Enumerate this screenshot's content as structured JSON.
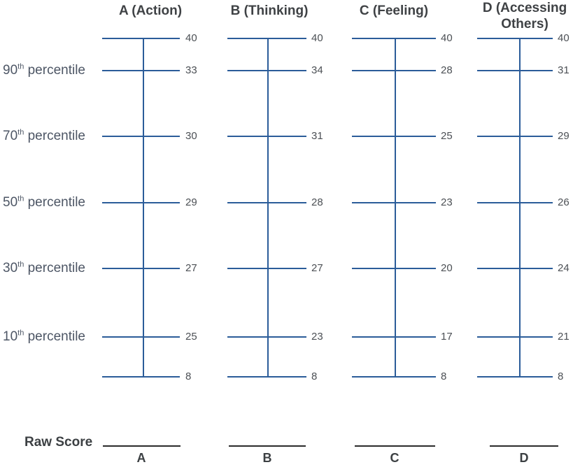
{
  "colors": {
    "scale_line_blue": "#2b5c99",
    "header_text": "#3f4245",
    "percentile_label_text": "#4d5665",
    "tick_number_text": "#4c5055",
    "raw_score_line": "#2b2b2b",
    "background": "#ffffff"
  },
  "percentile_rows": [
    {
      "num": "90",
      "sup": "th",
      "word": "percentile"
    },
    {
      "num": "70",
      "sup": "th",
      "word": "percentile"
    },
    {
      "num": "50",
      "sup": "th",
      "word": "percentile"
    },
    {
      "num": "30",
      "sup": "th",
      "word": "percentile"
    },
    {
      "num": "10",
      "sup": "th",
      "word": "percentile"
    }
  ],
  "columns": [
    {
      "id": "A",
      "header": "A (Action)",
      "values": [
        "40",
        "33",
        "30",
        "29",
        "27",
        "25",
        "8"
      ]
    },
    {
      "id": "B",
      "header": "B (Thinking)",
      "values": [
        "40",
        "34",
        "31",
        "28",
        "27",
        "23",
        "8"
      ]
    },
    {
      "id": "C",
      "header": "C (Feeling)",
      "values": [
        "40",
        "28",
        "25",
        "23",
        "20",
        "17",
        "8"
      ]
    },
    {
      "id": "D",
      "header": "D (Accessing Others)",
      "values": [
        "40",
        "31",
        "29",
        "26",
        "24",
        "21",
        "8"
      ]
    }
  ],
  "raw_score": {
    "label": "Raw Score",
    "blanks": [
      "A",
      "B",
      "C",
      "D"
    ]
  },
  "chart_data": {
    "type": "table",
    "title": "Percentile profile scales for scores A–D",
    "categories": [
      "90th percentile",
      "70th percentile",
      "50th percentile",
      "30th percentile",
      "10th percentile"
    ],
    "scale_max": 40,
    "scale_min": 8,
    "series": [
      {
        "name": "A (Action)",
        "values": [
          33,
          30,
          29,
          27,
          25
        ]
      },
      {
        "name": "B (Thinking)",
        "values": [
          34,
          31,
          28,
          27,
          23
        ]
      },
      {
        "name": "C (Feeling)",
        "values": [
          28,
          25,
          23,
          20,
          17
        ]
      },
      {
        "name": "D (Accessing Others)",
        "values": [
          31,
          29,
          26,
          24,
          21
        ]
      }
    ],
    "footer_label": "Raw Score",
    "legend_position": "none",
    "grid": false
  }
}
